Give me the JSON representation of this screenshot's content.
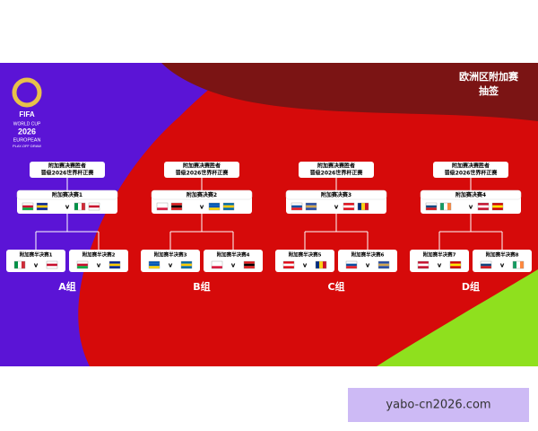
{
  "header": {
    "title": "欧洲区附加赛",
    "subtitle": "抽签"
  },
  "logo": {
    "brand": "FIFA",
    "line1": "WORLD CUP",
    "year": "2026",
    "line2": "EUROPEAN",
    "line3": "PLAY-OFF DRAW"
  },
  "vs": "v",
  "groups": [
    {
      "label": "A组",
      "winner": [
        "附加赛决赛胜者",
        "晋级2026世界杯正赛"
      ],
      "final": "附加赛决赛1",
      "semis": [
        "附加赛半决赛1",
        "附加赛半决赛2"
      ]
    },
    {
      "label": "B组",
      "winner": [
        "附加赛决赛胜者",
        "晋级2026世界杯正赛"
      ],
      "final": "附加赛决赛2",
      "semis": [
        "附加赛半决赛3",
        "附加赛半决赛4"
      ]
    },
    {
      "label": "C组",
      "winner": [
        "附加赛决赛胜者",
        "晋级2026世界杯正赛"
      ],
      "final": "附加赛决赛3",
      "semis": [
        "附加赛半决赛5",
        "附加赛半决赛6"
      ]
    },
    {
      "label": "D组",
      "winner": [
        "附加赛决赛胜者",
        "晋级2026世界杯正赛"
      ],
      "final": "附加赛决赛4",
      "semis": [
        "附加赛半决赛7",
        "附加赛半决赛8"
      ]
    }
  ],
  "watermark": "yabo-cn2026.com"
}
